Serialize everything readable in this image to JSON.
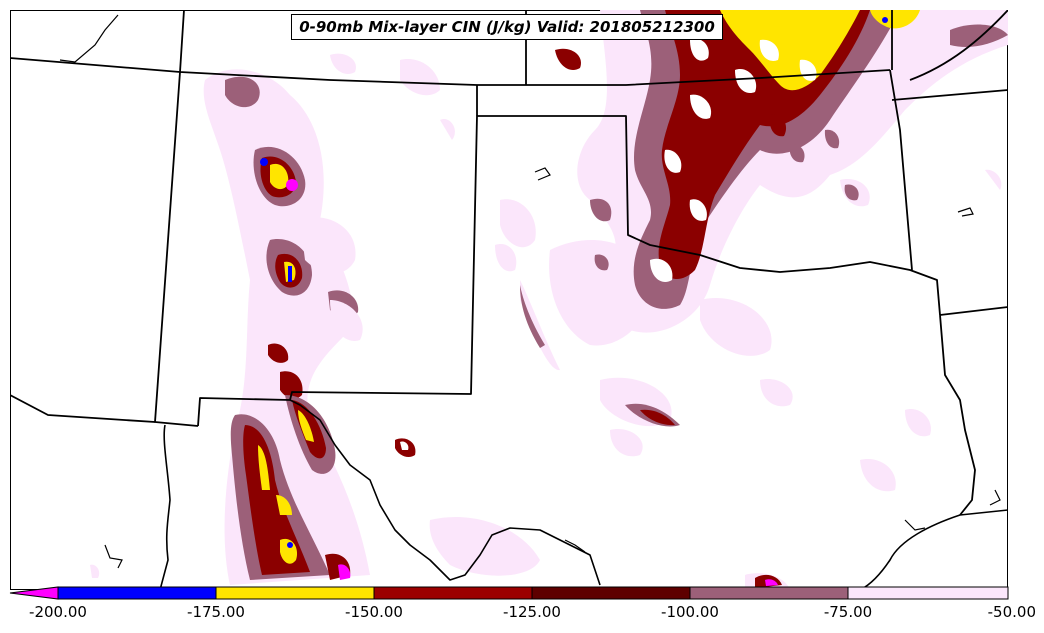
{
  "map": {
    "title": "0-90mb Mix-layer CIN (J/kg) Valid: 201805212300"
  },
  "colorbar": {
    "ticks": [
      "-200.00",
      "-175.00",
      "-150.00",
      "-125.00",
      "-100.00",
      "-75.00",
      "-50.00"
    ],
    "bins": [
      {
        "from": -200,
        "to": -175,
        "color": "#0000ff"
      },
      {
        "from": -175,
        "to": -150,
        "color": "#ffe500"
      },
      {
        "from": -150,
        "to": -125,
        "color": "#9b0000"
      },
      {
        "from": -125,
        "to": -100,
        "color": "#5e0000"
      },
      {
        "from": -100,
        "to": -75,
        "color": "#9c6079"
      },
      {
        "from": -75,
        "to": -50,
        "color": "#fbe6fb"
      }
    ],
    "under_color": "#ff00ff"
  },
  "palette": {
    "light_pink": "#fbe6fb",
    "mauve": "#9c6079",
    "dark_red": "#8b0000",
    "yellow": "#ffe500",
    "blue": "#0000ff",
    "magenta": "#ff00ff",
    "border": "#000000"
  }
}
